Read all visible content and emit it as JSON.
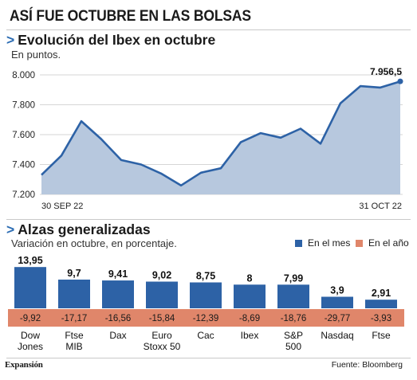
{
  "title": "ASÍ FUE OCTUBRE EN LAS BOLSAS",
  "section1": {
    "chevron": ">",
    "title": "Evolución del Ibex en octubre",
    "subtitle": "En puntos."
  },
  "section2": {
    "chevron": ">",
    "title": "Alzas generalizadas",
    "subtitle": "Variación en octubre, en porcentaje."
  },
  "legend": {
    "month": "En el mes",
    "year": "En el año"
  },
  "colors": {
    "line": "#2d62a6",
    "area": "#b7c8de",
    "bar_month": "#2d62a6",
    "band_year": "#e0866a",
    "chevron": "#2b6cb3"
  },
  "footer": {
    "brand": "Expansión",
    "source": "Fuente: Bloomberg"
  },
  "chart_data": [
    {
      "type": "area",
      "title": "Evolución del Ibex en octubre",
      "subtitle": "En puntos.",
      "x_start_label": "30 SEP 22",
      "x_end_label": "31 OCT 22",
      "ylim": [
        7200,
        8000
      ],
      "yticks": [
        7200,
        7400,
        7600,
        7800,
        8000
      ],
      "ytick_labels": [
        "7.200",
        "7.400",
        "7.600",
        "7.800",
        "8.000"
      ],
      "grid": true,
      "values": [
        7330,
        7460,
        7690,
        7570,
        7430,
        7400,
        7340,
        7260,
        7345,
        7375,
        7550,
        7610,
        7580,
        7640,
        7540,
        7810,
        7925,
        7915,
        7956.5
      ],
      "end_label": "7.956,5"
    },
    {
      "type": "bar",
      "title": "Alzas generalizadas",
      "subtitle": "Variación en octubre, en porcentaje.",
      "categories": [
        [
          "Dow",
          "Jones"
        ],
        [
          "Ftse",
          "MIB"
        ],
        [
          "Dax",
          ""
        ],
        [
          "Euro",
          "Stoxx 50"
        ],
        [
          "Cac",
          ""
        ],
        [
          "Ibex",
          ""
        ],
        [
          "S&P",
          "500"
        ],
        [
          "Nasdaq",
          ""
        ],
        [
          "Ftse",
          ""
        ]
      ],
      "series": [
        {
          "name": "En el mes",
          "values": [
            13.95,
            9.7,
            9.41,
            9.02,
            8.75,
            8,
            7.99,
            3.9,
            2.91
          ],
          "labels": [
            "13,95",
            "9,7",
            "9,41",
            "9,02",
            "8,75",
            "8",
            "7,99",
            "3,9",
            "2,91"
          ]
        },
        {
          "name": "En el año",
          "values": [
            -9.92,
            -17.17,
            -16.56,
            -15.84,
            -12.39,
            -8.69,
            -18.76,
            -29.77,
            -3.93
          ],
          "labels": [
            "-9,92",
            "-17,17",
            "-16,56",
            "-15,84",
            "-12,39",
            "-8,69",
            "-18,76",
            "-29,77",
            "-3,93"
          ]
        }
      ],
      "ylim": [
        0,
        14
      ],
      "legend": "top-right"
    }
  ]
}
